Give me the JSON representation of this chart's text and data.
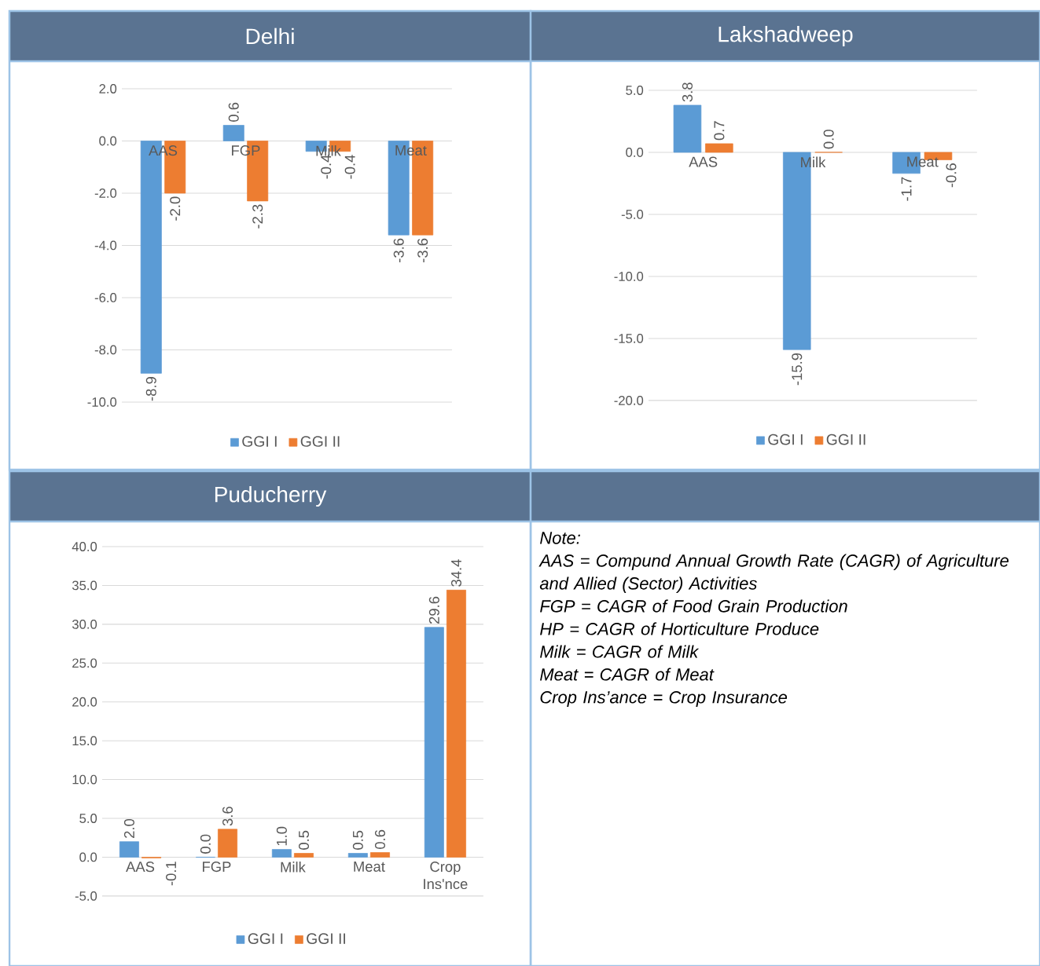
{
  "chart_data": [
    {
      "type": "bar",
      "title": "Delhi",
      "categories": [
        "AAS",
        "FGP",
        "Milk",
        "Meat"
      ],
      "series": [
        {
          "name": "GGI I",
          "color": "#5b9bd5",
          "values": [
            -8.9,
            0.6,
            -0.4,
            -3.6
          ],
          "value_labels": [
            "-8.9",
            "0.6",
            "-0.4",
            "-3.6"
          ]
        },
        {
          "name": "GGI II",
          "color": "#ed7d31",
          "values": [
            -2.0,
            -2.3,
            -0.4,
            -3.6
          ],
          "value_labels": [
            "-2.0",
            "-2.3",
            "-0.4",
            "-3.6"
          ]
        }
      ],
      "ylim": [
        -10,
        2
      ],
      "yticks": [
        {
          "value": -10,
          "label": "-10.0"
        },
        {
          "value": -8,
          "label": "-8.0"
        },
        {
          "value": -6,
          "label": "-6.0"
        },
        {
          "value": -4,
          "label": "-4.0"
        },
        {
          "value": -2,
          "label": "-2.0"
        },
        {
          "value": 0,
          "label": "0.0"
        },
        {
          "value": 2,
          "label": "2.0"
        }
      ],
      "grid": "y",
      "legend": "bottom"
    },
    {
      "type": "bar",
      "title": "Lakshadweep",
      "categories": [
        "AAS",
        "Milk",
        "Meat"
      ],
      "series": [
        {
          "name": "GGI I",
          "color": "#5b9bd5",
          "values": [
            3.8,
            -15.9,
            -1.7
          ],
          "value_labels": [
            "3.8",
            "-15.9",
            "-1.7"
          ]
        },
        {
          "name": "GGI II",
          "color": "#ed7d31",
          "values": [
            0.7,
            0.0,
            -0.6
          ],
          "value_labels": [
            "0.7",
            "0.0",
            "-0.6"
          ]
        }
      ],
      "ylim": [
        -20,
        5
      ],
      "yticks": [
        {
          "value": -20,
          "label": "-20.0"
        },
        {
          "value": -15,
          "label": "-15.0"
        },
        {
          "value": -10,
          "label": "-10.0"
        },
        {
          "value": -5,
          "label": "-5.0"
        },
        {
          "value": 0,
          "label": "0.0"
        },
        {
          "value": 5,
          "label": "5.0"
        }
      ],
      "grid": "y",
      "legend": "bottom"
    },
    {
      "type": "bar",
      "title": "Puducherry",
      "categories": [
        "AAS",
        "FGP",
        "Milk",
        "Meat",
        "Crop Ins'nce"
      ],
      "series": [
        {
          "name": "GGI I",
          "color": "#5b9bd5",
          "values": [
            2.0,
            0.0,
            1.0,
            0.5,
            29.6
          ],
          "value_labels": [
            "2.0",
            "0.0",
            "1.0",
            "0.5",
            "29.6"
          ]
        },
        {
          "name": "GGI II",
          "color": "#ed7d31",
          "values": [
            -0.1,
            3.6,
            0.5,
            0.6,
            34.4
          ],
          "value_labels": [
            "-0.1",
            "3.6",
            "0.5",
            "0.6",
            "34.4"
          ]
        }
      ],
      "ylim": [
        -5,
        40
      ],
      "yticks": [
        {
          "value": -5,
          "label": "-5.0"
        },
        {
          "value": 0,
          "label": "0.0"
        },
        {
          "value": 5,
          "label": "5.0"
        },
        {
          "value": 10,
          "label": "10.0"
        },
        {
          "value": 15,
          "label": "15.0"
        },
        {
          "value": 20,
          "label": "20.0"
        },
        {
          "value": 25,
          "label": "25.0"
        },
        {
          "value": 30,
          "label": "30.0"
        },
        {
          "value": 35,
          "label": "35.0"
        },
        {
          "value": 40,
          "label": "40.0"
        }
      ],
      "grid": "y",
      "legend": "bottom"
    },
    {
      "type": "other",
      "annotations": [
        "Note:",
        "AAS = Compund Annual Growth Rate (CAGR) of Agriculture and Allied (Sector) Activities",
        "FGP = CAGR of Food Grain Production",
        "HP = CAGR of Horticulture Produce",
        "Milk = CAGR of Milk",
        "Meat = CAGR of Meat",
        "Crop Ins’ance = Crop Insurance"
      ]
    }
  ]
}
